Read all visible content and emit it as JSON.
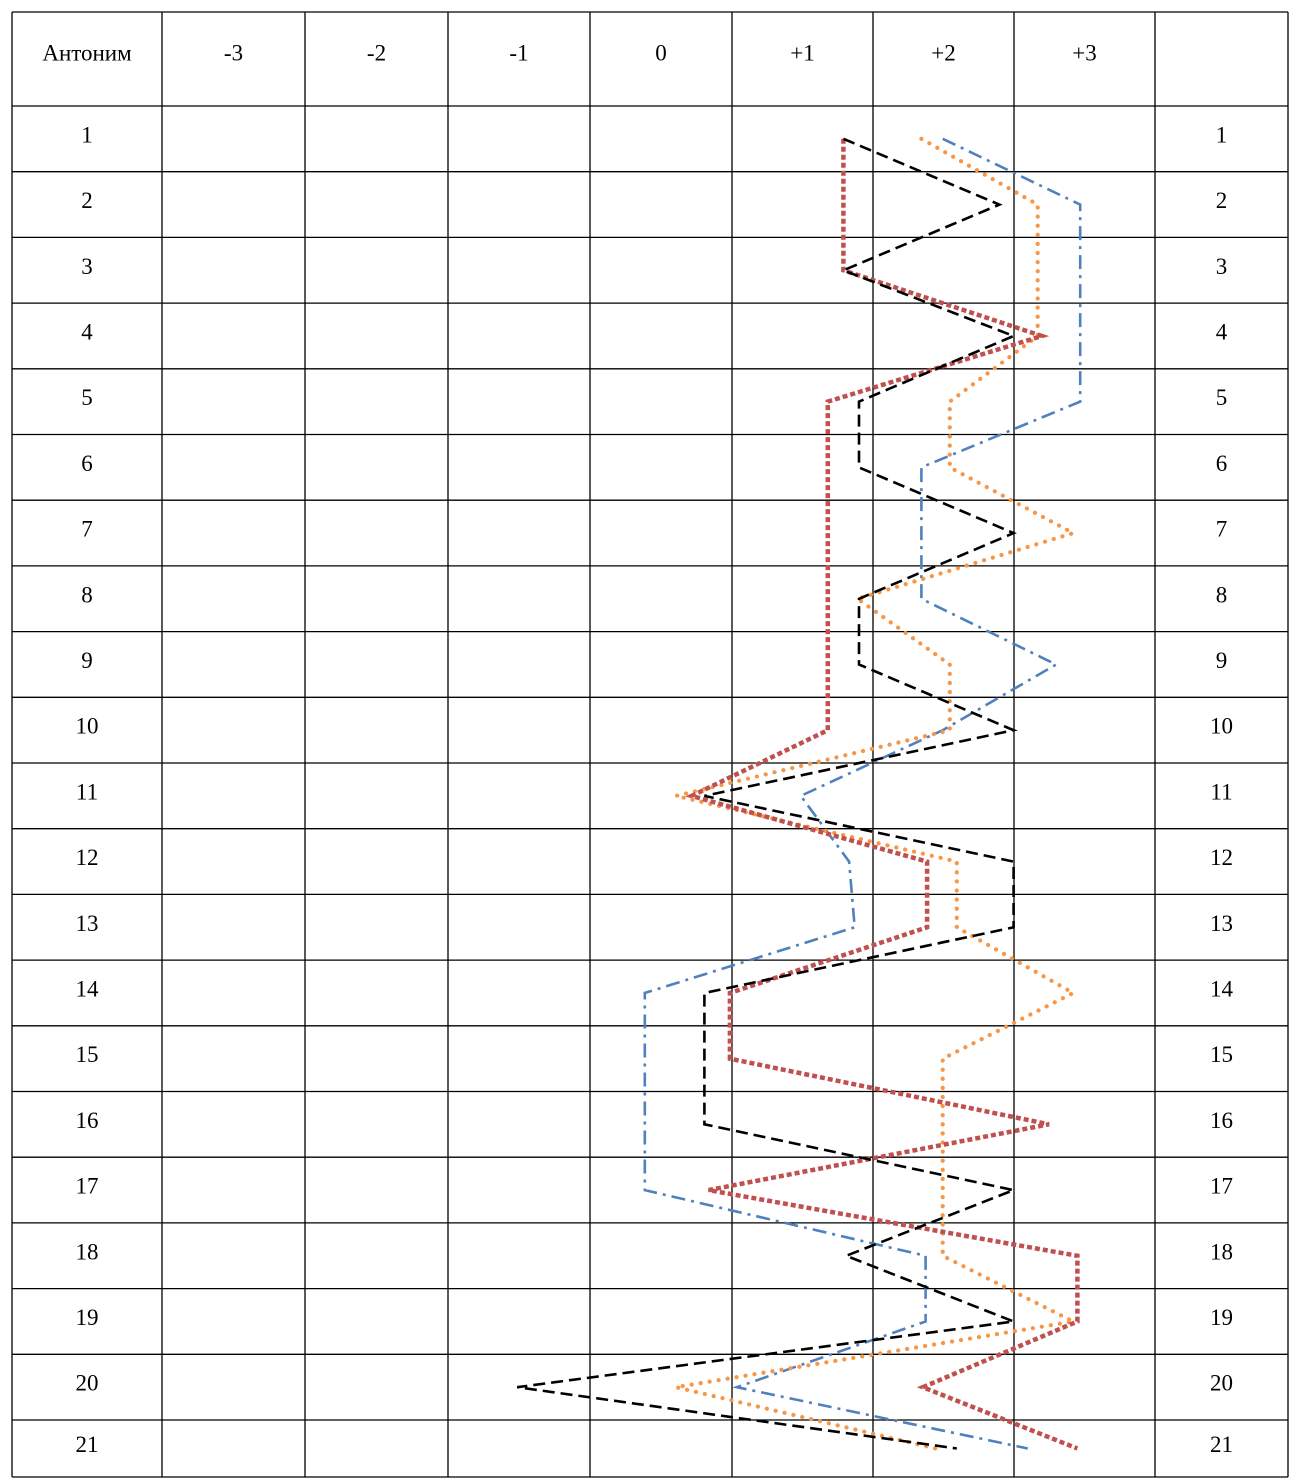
{
  "chart_data": {
    "type": "line",
    "header": {
      "first": "Антоним",
      "last": ""
    },
    "columns": [
      "-3",
      "-2",
      "-1",
      "0",
      "+1",
      "+2",
      "+3"
    ],
    "rows": [
      "1",
      "2",
      "3",
      "4",
      "5",
      "6",
      "7",
      "8",
      "9",
      "10",
      "11",
      "12",
      "13",
      "14",
      "15",
      "16",
      "17",
      "18",
      "19",
      "20",
      "21"
    ],
    "xlim": [
      -3,
      3
    ],
    "series": [
      {
        "color": "#4f81bd",
        "dash": "14 6 3 6",
        "values": [
          2.0,
          2.97,
          2.97,
          2.97,
          2.97,
          1.85,
          1.85,
          1.85,
          2.8,
          2.0,
          1.0,
          1.34,
          1.38,
          -0.1,
          -0.1,
          -0.1,
          -0.1,
          1.88,
          1.88,
          0.55,
          2.6
        ]
      },
      {
        "color": "#f79646",
        "dash": "0.1 9",
        "values": [
          1.85,
          2.67,
          2.67,
          2.67,
          2.05,
          2.05,
          2.92,
          1.4,
          2.05,
          2.05,
          0.12,
          2.1,
          2.1,
          2.92,
          2.0,
          2.0,
          2.0,
          2.0,
          2.92,
          0.12,
          1.95
        ]
      },
      {
        "color": "#c0504d",
        "dash": "5 3",
        "values": [
          1.3,
          1.3,
          1.3,
          2.7,
          1.19,
          1.19,
          1.19,
          1.19,
          1.19,
          1.19,
          0.23,
          1.89,
          1.89,
          0.5,
          0.5,
          2.75,
          0.35,
          2.95,
          2.95,
          1.86,
          2.95
        ]
      },
      {
        "color": "#000000",
        "dash": "12 6",
        "values": [
          1.3,
          2.4,
          1.3,
          2.5,
          1.41,
          1.41,
          2.5,
          1.41,
          1.41,
          2.5,
          0.32,
          2.5,
          2.5,
          0.32,
          0.32,
          0.32,
          2.5,
          1.32,
          2.5,
          -1.0,
          2.1
        ]
      }
    ]
  }
}
